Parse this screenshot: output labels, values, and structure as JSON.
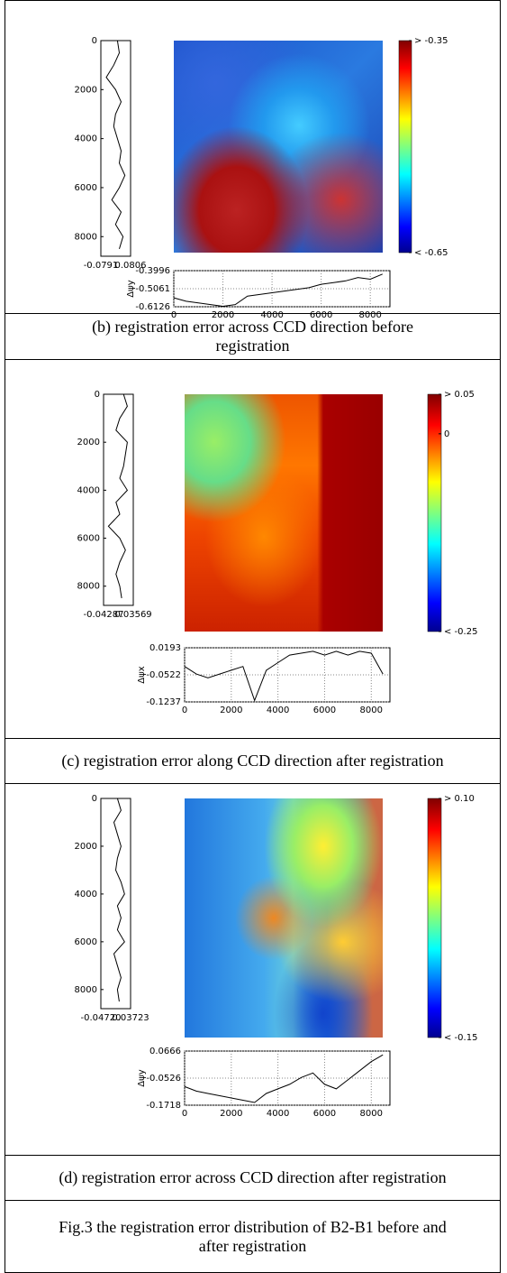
{
  "panels": [
    {
      "caption": "(b) registration error across CCD direction before registration",
      "colorbar": {
        "lim": [
          -0.65,
          -0.35
        ],
        "ticks": [
          {
            "value": -0.35,
            "label": "> -0.35"
          },
          {
            "value": -0.65,
            "label": "< -0.65"
          }
        ]
      },
      "left_profile": {
        "type": "line",
        "ylim": [
          0,
          8800
        ],
        "yticks": [
          0,
          2000,
          4000,
          6000,
          8000
        ],
        "xlim": [
          -0.0791,
          0.0806
        ],
        "xticks": [
          -0.0791,
          0.0806
        ],
        "x": [
          0,
          500,
          1000,
          1500,
          2000,
          2500,
          3000,
          3500,
          4000,
          4500,
          5000,
          5500,
          6000,
          6500,
          7000,
          7500,
          8000,
          8500
        ],
        "values": [
          0.01,
          0.02,
          -0.01,
          -0.05,
          0.0,
          0.03,
          0.0,
          -0.01,
          0.01,
          0.03,
          0.02,
          0.05,
          0.02,
          -0.02,
          0.03,
          0.0,
          0.04,
          0.02
        ]
      },
      "bottom_profile": {
        "type": "line",
        "ylabel": "Δψy",
        "grid": true,
        "xlim": [
          0,
          8800
        ],
        "xticks": [
          0,
          2000,
          4000,
          6000,
          8000
        ],
        "ylim": [
          -0.6126,
          -0.3996
        ],
        "yticks": [
          -0.3996,
          -0.5061,
          -0.6126
        ],
        "x": [
          0,
          500,
          1000,
          1500,
          2000,
          2500,
          3000,
          3500,
          4000,
          4500,
          5000,
          5500,
          6000,
          6500,
          7000,
          7500,
          8000,
          8500
        ],
        "values": [
          -0.56,
          -0.58,
          -0.59,
          -0.6,
          -0.61,
          -0.6,
          -0.55,
          -0.54,
          -0.53,
          -0.52,
          -0.51,
          -0.5,
          -0.48,
          -0.47,
          -0.46,
          -0.44,
          -0.45,
          -0.42
        ]
      }
    },
    {
      "caption": "(c) registration error along CCD direction after registration",
      "colorbar": {
        "lim": [
          -0.25,
          0.05
        ],
        "ticks": [
          {
            "value": 0.05,
            "label": "> 0.05"
          },
          0,
          {
            "value": -0.25,
            "label": "< -0.25"
          }
        ]
      },
      "left_profile": {
        "type": "line",
        "ylim": [
          0,
          8800
        ],
        "yticks": [
          0,
          2000,
          4000,
          6000,
          8000
        ],
        "xlim": [
          -0.04287,
          0.03569
        ],
        "xticks": [
          -0.04287,
          0.03569
        ],
        "x": [
          0,
          500,
          1000,
          1500,
          2000,
          2500,
          3000,
          3500,
          4000,
          4500,
          5000,
          5500,
          6000,
          6500,
          7000,
          7500,
          8000,
          8500
        ],
        "values": [
          0.01,
          0.02,
          0.0,
          -0.01,
          0.02,
          0.015,
          0.01,
          0.0,
          0.02,
          -0.01,
          0.0,
          -0.03,
          0.0,
          0.015,
          0.0,
          -0.01,
          0.0,
          0.005
        ]
      },
      "bottom_profile": {
        "type": "line",
        "ylabel": "Δψx",
        "grid": true,
        "xlim": [
          0,
          8800
        ],
        "xticks": [
          0,
          2000,
          4000,
          6000,
          8000
        ],
        "ylim": [
          -0.1237,
          0.0193
        ],
        "yticks": [
          0.0193,
          -0.0522,
          -0.1237
        ],
        "x": [
          0,
          500,
          1000,
          1500,
          2000,
          2500,
          3000,
          3500,
          4000,
          4500,
          5000,
          5500,
          6000,
          6500,
          7000,
          7500,
          8000,
          8500
        ],
        "values": [
          -0.03,
          -0.05,
          -0.06,
          -0.05,
          -0.04,
          -0.03,
          -0.12,
          -0.04,
          -0.02,
          0.0,
          0.005,
          0.01,
          0.0,
          0.01,
          0.0,
          0.01,
          0.005,
          -0.05
        ]
      }
    },
    {
      "caption": "(d) registration error across CCD direction after registration",
      "colorbar": {
        "lim": [
          -0.15,
          0.1
        ],
        "ticks": [
          {
            "value": 0.1,
            "label": "> 0.10"
          },
          {
            "value": -0.15,
            "label": "< -0.15"
          }
        ]
      },
      "left_profile": {
        "type": "line",
        "ylim": [
          0,
          8800
        ],
        "yticks": [
          0,
          2000,
          4000,
          6000,
          8000
        ],
        "xlim": [
          -0.0472,
          0.03723
        ],
        "xticks": [
          {
            "value": -0.0472,
            "label": "-0.04720"
          },
          0.03723
        ],
        "x": [
          0,
          500,
          1000,
          1500,
          2000,
          2500,
          3000,
          3500,
          4000,
          4500,
          5000,
          5500,
          6000,
          6500,
          7000,
          7500,
          8000,
          8500
        ],
        "values": [
          0.0,
          0.01,
          -0.01,
          0.0,
          0.01,
          0.0,
          -0.005,
          0.01,
          0.02,
          0.0,
          0.01,
          0.0,
          0.02,
          -0.01,
          0.0,
          0.01,
          0.0,
          0.005
        ]
      },
      "bottom_profile": {
        "type": "line",
        "ylabel": "Δψy",
        "grid": true,
        "xlim": [
          0,
          8800
        ],
        "xticks": [
          0,
          2000,
          4000,
          6000,
          8000
        ],
        "ylim": [
          -0.1718,
          0.0666
        ],
        "yticks": [
          0.0666,
          -0.0526,
          -0.1718
        ],
        "x": [
          0,
          500,
          1000,
          1500,
          2000,
          2500,
          3000,
          3500,
          4000,
          4500,
          5000,
          5500,
          6000,
          6500,
          7000,
          7500,
          8000,
          8500
        ],
        "values": [
          -0.09,
          -0.11,
          -0.12,
          -0.13,
          -0.14,
          -0.15,
          -0.16,
          -0.12,
          -0.1,
          -0.08,
          -0.05,
          -0.03,
          -0.08,
          -0.1,
          -0.06,
          -0.02,
          0.02,
          0.05
        ]
      }
    }
  ],
  "figure_caption": "Fig.3 the registration error distribution of B2-B1 before and after registration"
}
